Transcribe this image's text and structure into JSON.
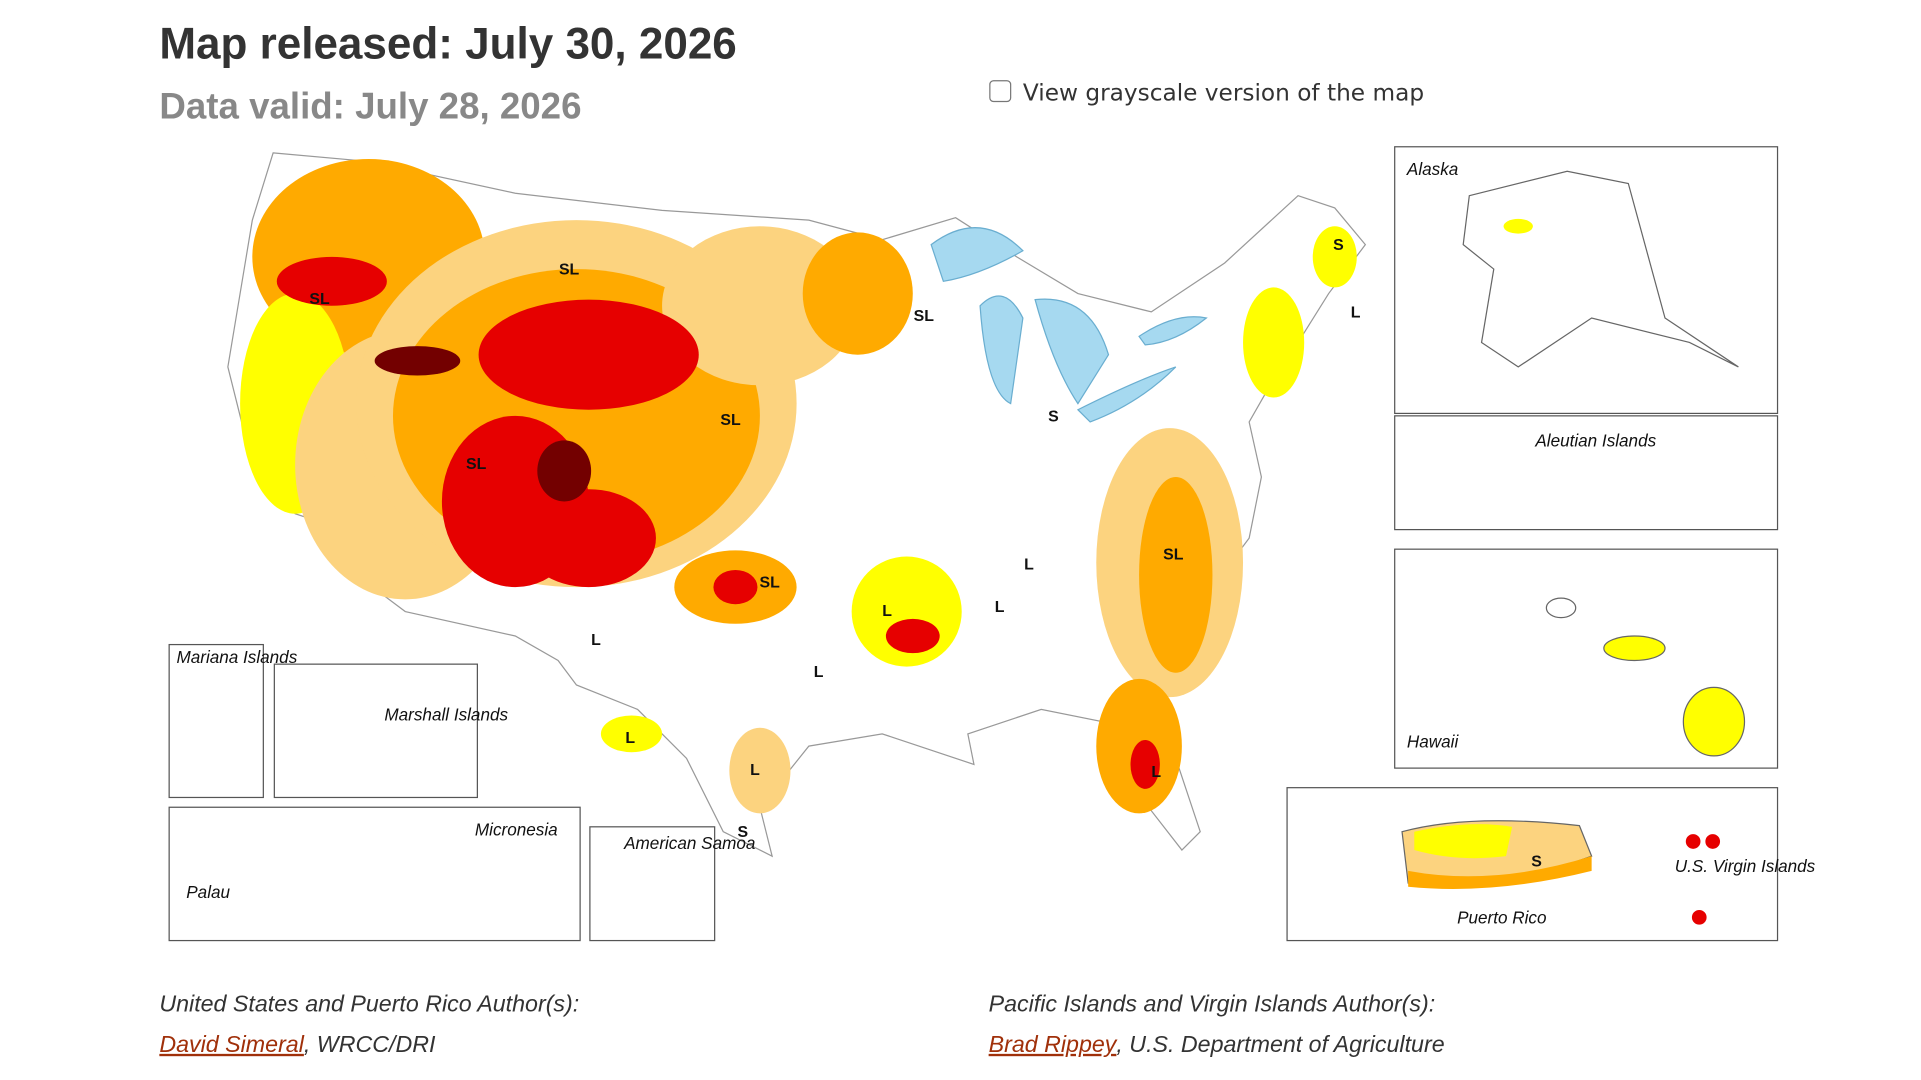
{
  "header": {
    "title": "Map released: July 30, 2026",
    "subtitle": "Data valid: July 28, 2026",
    "grayscale_toggle": "View grayscale version of the map"
  },
  "map": {
    "insets": [
      "Alaska",
      "Aleutian Islands",
      "Hawaii",
      "Puerto Rico",
      "U.S. Virgin Islands",
      "Mariana Islands",
      "Marshall Islands",
      "Micronesia",
      "Palau",
      "American Samoa"
    ],
    "impact_labels": [
      "SL",
      "SL",
      "SL",
      "SL",
      "SL",
      "SL",
      "SL",
      "L",
      "L",
      "L",
      "L",
      "L",
      "L",
      "L",
      "L",
      "L",
      "S",
      "S",
      "S",
      "S"
    ]
  },
  "authors": {
    "us": {
      "heading": "United States and Puerto Rico Author(s):",
      "name": "David Simeral",
      "affiliation": ", WRCC/DRI"
    },
    "pacific": {
      "heading": "Pacific Islands and Virgin Islands Author(s):",
      "name": "Brad Rippey",
      "affiliation": ", U.S. Department of Agriculture"
    }
  }
}
